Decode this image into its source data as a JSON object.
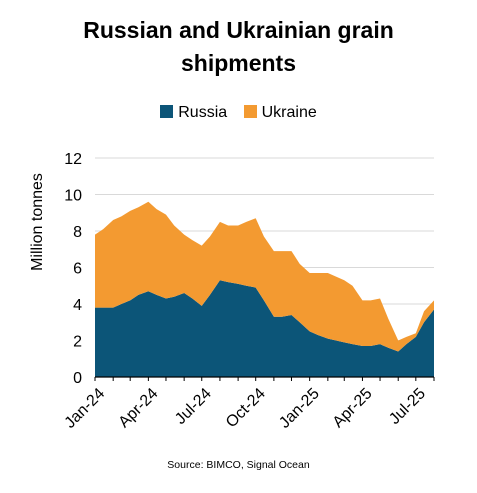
{
  "chart_data": {
    "type": "area",
    "stacked": true,
    "title_lines": [
      "Russian and Ukrainian grain",
      "shipments"
    ],
    "xlabel": "",
    "ylabel": "Million tonnes",
    "ylim": [
      0,
      12
    ],
    "yticks": [
      0,
      2,
      4,
      6,
      8,
      10,
      12
    ],
    "xtick_labels": [
      "Jan-24",
      "Apr-24",
      "Jul-24",
      "Oct-24",
      "Jan-25",
      "Apr-25",
      "Jul-25"
    ],
    "x": [
      "2024-01-01",
      "2024-01-15",
      "2024-02-01",
      "2024-02-15",
      "2024-03-01",
      "2024-03-15",
      "2024-04-01",
      "2024-04-15",
      "2024-05-01",
      "2024-05-15",
      "2024-06-01",
      "2024-06-15",
      "2024-07-01",
      "2024-07-15",
      "2024-08-01",
      "2024-08-15",
      "2024-09-01",
      "2024-09-15",
      "2024-10-01",
      "2024-10-15",
      "2024-11-01",
      "2024-11-15",
      "2024-12-01",
      "2024-12-15",
      "2025-01-01",
      "2025-01-15",
      "2025-02-01",
      "2025-02-15",
      "2025-03-01",
      "2025-03-15",
      "2025-04-01",
      "2025-04-15",
      "2025-05-01",
      "2025-05-15",
      "2025-06-01",
      "2025-06-15",
      "2025-07-01",
      "2025-07-15",
      "2025-08-01"
    ],
    "series": [
      {
        "name": "Russia",
        "color": "#0c5578",
        "values": [
          3.8,
          3.8,
          3.8,
          4.0,
          4.2,
          4.5,
          4.7,
          4.5,
          4.3,
          4.4,
          4.6,
          4.3,
          3.9,
          4.5,
          5.3,
          5.2,
          5.1,
          5.0,
          4.9,
          4.2,
          3.3,
          3.3,
          3.4,
          3.0,
          2.5,
          2.3,
          2.1,
          2.0,
          1.9,
          1.8,
          1.7,
          1.7,
          1.8,
          1.6,
          1.4,
          1.8,
          2.2,
          3.0,
          3.7
        ]
      },
      {
        "name": "Ukraine",
        "color": "#f39a31",
        "values": [
          4.0,
          4.3,
          4.8,
          4.8,
          4.9,
          4.8,
          4.9,
          4.7,
          4.6,
          3.9,
          3.2,
          3.2,
          3.3,
          3.2,
          3.2,
          3.1,
          3.2,
          3.5,
          3.8,
          3.5,
          3.6,
          3.6,
          3.5,
          3.2,
          3.2,
          3.4,
          3.6,
          3.5,
          3.4,
          3.2,
          2.5,
          2.5,
          2.5,
          1.6,
          0.6,
          0.4,
          0.2,
          0.6,
          0.5
        ]
      }
    ],
    "grid": "horizontal",
    "legend_position": "top",
    "source": "Source: BIMCO, Signal Ocean"
  }
}
